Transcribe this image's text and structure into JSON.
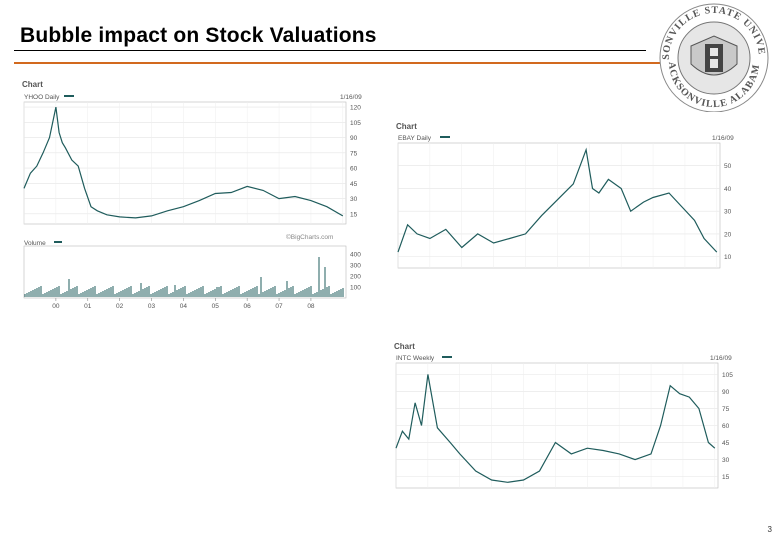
{
  "slide": {
    "title": "Bubble impact on Stock Valuations",
    "page_number": "3"
  },
  "seal": {
    "top_text": "JACKSONVILLE STATE UNIVERSITY",
    "bottom_text": "JACKSONVILLE  ALABAMA",
    "colors": {
      "ink": "#555555",
      "fill": "#d8d8d8"
    }
  },
  "colors": {
    "series": "#1f5c5c",
    "grid": "#e2e2e2",
    "frame": "#bbbbbb",
    "rule": "#d2691e",
    "text": "#555555"
  },
  "chart_data": [
    {
      "type": "line",
      "panel_title": "Chart",
      "symbol": "YHOO Daily",
      "date": "1/16/09",
      "watermark": "©BigCharts.com",
      "y_ticks": [
        "120",
        "105",
        "90",
        "75",
        "60",
        "45",
        "30",
        "15"
      ],
      "ylim": [
        5,
        125
      ],
      "x_ticks": [
        "00",
        "01",
        "02",
        "03",
        "04",
        "05",
        "06",
        "07",
        "08"
      ],
      "xlim": [
        1999.0,
        2009.1
      ],
      "series": [
        {
          "x": [
            1999.0,
            1999.2,
            1999.4,
            1999.6,
            1999.8,
            2000.0,
            2000.1,
            2000.2,
            2000.3,
            2000.5,
            2000.7,
            2000.9,
            2001.1,
            2001.3,
            2001.6,
            2002.0,
            2002.5,
            2003.0,
            2003.5,
            2004.0,
            2004.5,
            2005.0,
            2005.5,
            2006.0,
            2006.5,
            2007.0,
            2007.5,
            2008.0,
            2008.5,
            2009.0
          ],
          "y": [
            40,
            55,
            62,
            75,
            90,
            120,
            95,
            85,
            80,
            68,
            62,
            40,
            22,
            18,
            14,
            12,
            11,
            13,
            18,
            22,
            28,
            35,
            36,
            42,
            38,
            30,
            32,
            28,
            22,
            13
          ]
        }
      ],
      "volume_label": "Volume",
      "volume_ticks": [
        "400",
        "300",
        "200",
        "100"
      ]
    },
    {
      "type": "line",
      "panel_title": "Chart",
      "symbol": "EBAY Daily",
      "date": "1/16/09",
      "y_ticks": [
        "50",
        "40",
        "30",
        "20",
        "10"
      ],
      "ylim": [
        5,
        60
      ],
      "xlim": [
        1999.0,
        2009.1
      ],
      "series": [
        {
          "x": [
            1999.0,
            1999.3,
            1999.6,
            2000.0,
            2000.5,
            2001.0,
            2001.5,
            2002.0,
            2002.5,
            2003.0,
            2003.5,
            2004.0,
            2004.5,
            2004.9,
            2005.1,
            2005.3,
            2005.6,
            2006.0,
            2006.3,
            2006.7,
            2007.0,
            2007.5,
            2007.9,
            2008.3,
            2008.6,
            2009.0
          ],
          "y": [
            12,
            24,
            20,
            18,
            22,
            14,
            20,
            16,
            18,
            20,
            28,
            35,
            42,
            57,
            40,
            38,
            44,
            40,
            30,
            34,
            36,
            38,
            32,
            26,
            18,
            12
          ]
        }
      ]
    },
    {
      "type": "line",
      "panel_title": "Chart",
      "symbol": "INTC Weekly",
      "date": "1/16/09",
      "y_ticks": [
        "105",
        "90",
        "75",
        "60",
        "45",
        "30",
        "15"
      ],
      "ylim": [
        5,
        115
      ],
      "xlim": [
        1999.0,
        2009.1
      ],
      "series": [
        {
          "x": [
            1999.0,
            1999.2,
            1999.4,
            1999.6,
            1999.8,
            2000.0,
            2000.3,
            2000.7,
            2001.0,
            2001.5,
            2002.0,
            2002.5,
            2003.0,
            2003.5,
            2004.0,
            2004.5,
            2005.0,
            2005.5,
            2006.0,
            2006.5,
            2007.0,
            2007.3,
            2007.6,
            2007.9,
            2008.2,
            2008.5,
            2008.8,
            2009.0
          ],
          "y": [
            40,
            55,
            48,
            80,
            60,
            105,
            58,
            45,
            35,
            20,
            12,
            10,
            12,
            20,
            45,
            35,
            40,
            38,
            35,
            30,
            35,
            60,
            95,
            88,
            85,
            75,
            45,
            40
          ]
        }
      ]
    }
  ]
}
